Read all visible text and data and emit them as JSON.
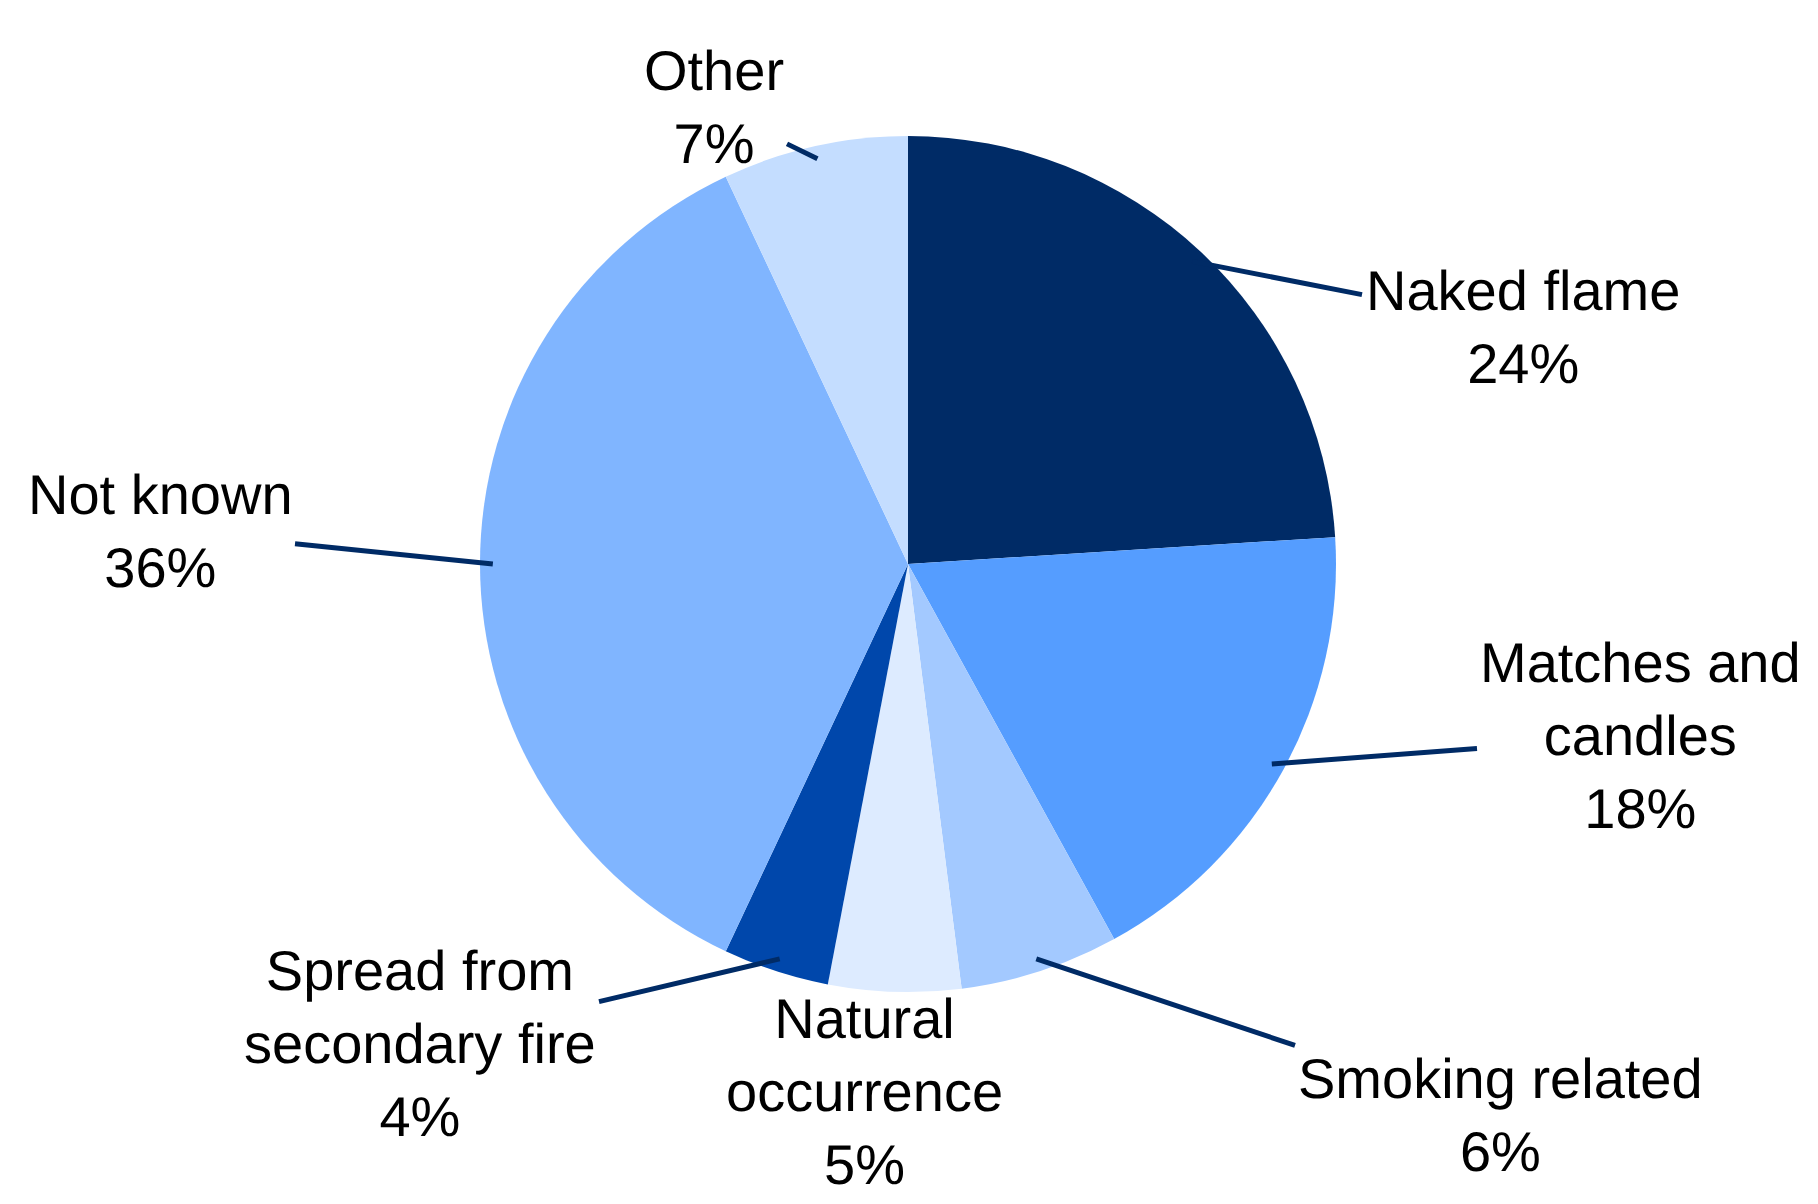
{
  "chart_data": {
    "type": "pie",
    "categories": [
      "Naked flame",
      "Matches and candles",
      "Smoking related",
      "Natural occurrence",
      "Spread from secondary fire",
      "Not known",
      "Other"
    ],
    "values": [
      24,
      18,
      6,
      5,
      4,
      36,
      7
    ],
    "colors": [
      "#002b66",
      "#559dff",
      "#a3c9ff",
      "#ddebff",
      "#0047ab",
      "#80b5ff",
      "#c4ddff"
    ],
    "value_labels": [
      "24%",
      "18%",
      "6%",
      "5%",
      "4%",
      "36%",
      "7%"
    ],
    "legend": false
  }
}
